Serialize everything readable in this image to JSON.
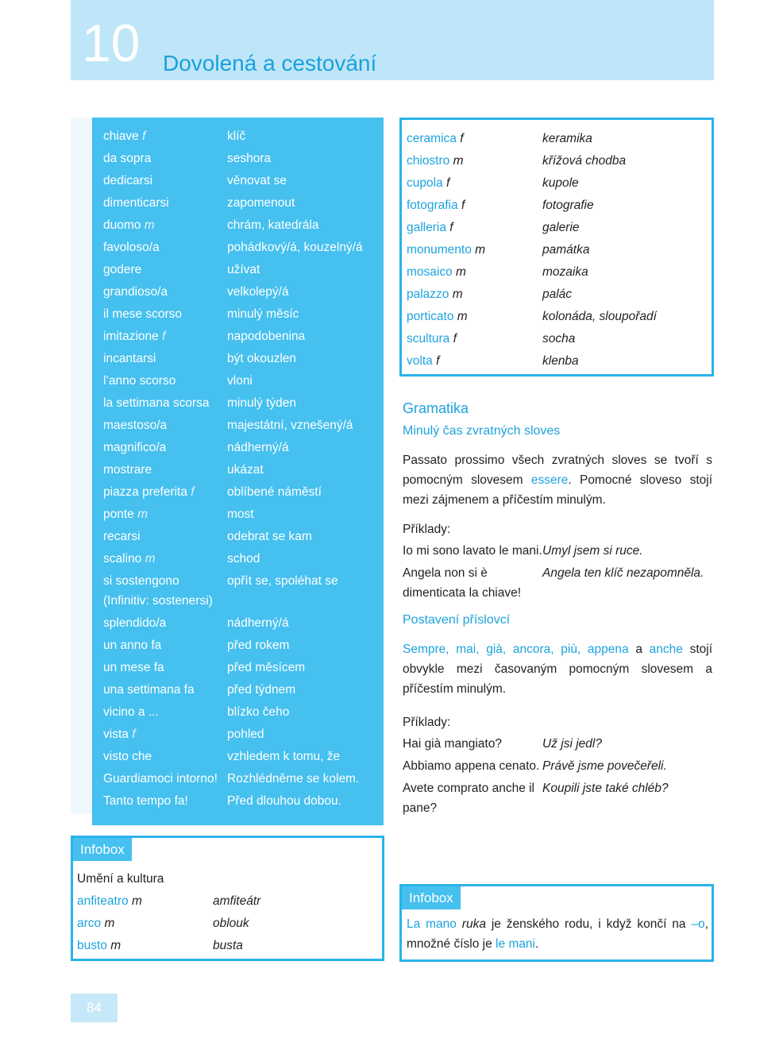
{
  "header": {
    "number": "10",
    "title": "Dovolená a cestování"
  },
  "vocabulary": [
    {
      "word": "chiave",
      "gender": "f",
      "meaning": "klíč"
    },
    {
      "word": "da sopra",
      "meaning": "seshora"
    },
    {
      "word": "dedicarsi",
      "meaning": "věnovat se"
    },
    {
      "word": "dimenticarsi",
      "meaning": "zapomenout"
    },
    {
      "word": "duomo",
      "gender": "m",
      "meaning": "chrám, katedrála"
    },
    {
      "word": "favoloso/a",
      "meaning": "pohádkový/á, kouzelný/á"
    },
    {
      "word": "godere",
      "meaning": "užívat"
    },
    {
      "word": "grandioso/a",
      "meaning": "velkolepý/á"
    },
    {
      "word": "il mese scorso",
      "meaning": "minulý měsíc"
    },
    {
      "word": "imitazione",
      "gender": "f",
      "meaning": "napodobenina"
    },
    {
      "word": "incantarsi",
      "meaning": "být okouzlen"
    },
    {
      "word": "l’anno scorso",
      "meaning": "vloni"
    },
    {
      "word": "la settimana scorsa",
      "meaning": "minulý týden"
    },
    {
      "word": "maestoso/a",
      "meaning": "majestátní, vznešený/á"
    },
    {
      "word": "magnifico/a",
      "meaning": "nádherný/á"
    },
    {
      "word": "mostrare",
      "meaning": "ukázat"
    },
    {
      "word": "piazza preferita",
      "gender": "f",
      "meaning": "oblíbené náměstí"
    },
    {
      "word": "ponte",
      "gender": "m",
      "meaning": "most"
    },
    {
      "word": "recarsi",
      "meaning": "odebrat se kam"
    },
    {
      "word": "scalino",
      "gender": "m",
      "meaning": "schod"
    },
    {
      "word": "si sostengono",
      "note": "(Infinitiv: sostenersi)",
      "meaning": "opřít se, spoléhat se"
    },
    {
      "word": "splendido/a",
      "meaning": "nádherný/á"
    },
    {
      "word": "un anno fa",
      "meaning": "před rokem"
    },
    {
      "word": "un mese fa",
      "meaning": "před měsícem"
    },
    {
      "word": "una settimana fa",
      "meaning": "před týdnem"
    },
    {
      "word": "vicino a ...",
      "meaning": "blízko čeho"
    },
    {
      "word": "vista",
      "gender": "f",
      "meaning": "pohled"
    },
    {
      "word": "visto che",
      "meaning": "vzhledem k tomu, že"
    },
    {
      "word": "Guardiamoci intorno!",
      "meaning": "Rozhlédněme se kolem."
    },
    {
      "word": "Tanto tempo fa!",
      "meaning": "Před dlouhou dobou."
    }
  ],
  "vocabulary_art": [
    {
      "word": "ceramica",
      "gender": "f",
      "meaning": "keramika"
    },
    {
      "word": "chiostro",
      "gender": "m",
      "meaning": "křížová chodba"
    },
    {
      "word": "cupola",
      "gender": "f",
      "meaning": "kupole"
    },
    {
      "word": "fotografia",
      "gender": "f",
      "meaning": "fotografie"
    },
    {
      "word": "galleria",
      "gender": "f",
      "meaning": "galerie"
    },
    {
      "word": "monumento",
      "gender": "m",
      "meaning": "památka"
    },
    {
      "word": "mosaico",
      "gender": "m",
      "meaning": "mozaika"
    },
    {
      "word": "palazzo",
      "gender": "m",
      "meaning": "palác"
    },
    {
      "word": "porticato",
      "gender": "m",
      "meaning": "kolonáda, sloupořadí"
    },
    {
      "word": "scultura",
      "gender": "f",
      "meaning": "socha"
    },
    {
      "word": "volta",
      "gender": "f",
      "meaning": "klenba"
    }
  ],
  "grammar": {
    "heading": "Gramatika",
    "subheading": "Minulý čas zvratných sloves",
    "paragraph": [
      "Passato prossimo všech zvratných sloves se tvoří s pomocným slovesem",
      "essere",
      ". Pomocné sloveso stojí mezi zájmenem a příčestím minulým."
    ],
    "examples_label": "Příklady:",
    "examples": [
      {
        "it": "Io mi sono lavato le mani.",
        "cz": "Umyl jsem si ruce."
      },
      {
        "it": "Angela non si è dimenticata la chiave!",
        "cz": "Angela ten klíč nezapomněla."
      }
    ],
    "subheading2": "Postavení příslovcí",
    "paragraph2": [
      "Sempre, mai, già, ancora, più, appena",
      "a",
      "anche",
      "stojí obvykle mezi časovaným pomocným slovesem a příčestím minulým."
    ],
    "examples2_label": "Příklady:",
    "examples2": [
      {
        "it": "Hai già mangiato?",
        "cz": "Už jsi jedl?"
      },
      {
        "it": "Abbiamo appena cenato.",
        "cz": "Právě jsme povečeřeli."
      },
      {
        "it": "Avete comprato anche il pane?",
        "cz": "Koupili jste také chléb?"
      }
    ]
  },
  "infobox_left": {
    "label": "Infobox",
    "heading": "Umění a kultura",
    "entries": [
      {
        "word": "anfiteatro",
        "gender": "m",
        "meaning": "amfiteátr"
      },
      {
        "word": "arco",
        "gender": "m",
        "meaning": "oblouk"
      },
      {
        "word": "busto",
        "gender": "m",
        "meaning": "busta"
      }
    ]
  },
  "infobox_right": {
    "label": "Infobox",
    "text": [
      "La mano",
      "ruka",
      "je ženského rodu, i když končí na",
      "–o",
      ", množné číslo je",
      "le mani",
      "."
    ]
  },
  "page_number": "84"
}
